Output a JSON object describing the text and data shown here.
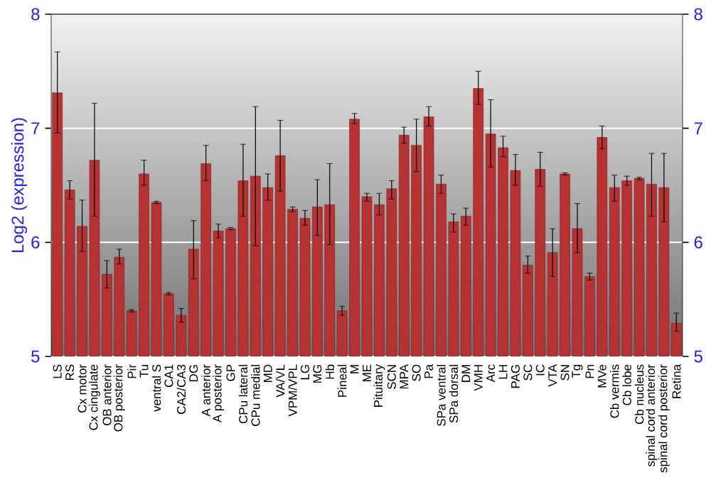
{
  "chart_data": {
    "type": "bar",
    "ylabel": "Log2 (expression)",
    "color": "#b83232",
    "grid": "y",
    "ylim": [
      5,
      8
    ],
    "yticks": [
      5,
      6,
      7,
      8
    ],
    "y2lim": [
      5,
      8
    ],
    "y2ticks": [
      5,
      6,
      7,
      8
    ],
    "categories": [
      "LS",
      "RS",
      "Cx motor",
      "Cx cingulate",
      "OB anterior",
      "OB posterior",
      "Pir",
      "Tu",
      "ventral S",
      "CA1",
      "CA2/CA3",
      "DG",
      "A anterior",
      "A posterior",
      "GP",
      "CPu lateral",
      "CPu medial",
      "MD",
      "VA/VL",
      "VPM/VPL",
      "LG",
      "MG",
      "Hb",
      "Pineal",
      "M",
      "ME",
      "Pituitary",
      "SCN",
      "MPA",
      "SO",
      "Pa",
      "SPa ventral",
      "SPa dorsal",
      "DM",
      "VMH",
      "Arc",
      "LH",
      "PAG",
      "SC",
      "IC",
      "VTA",
      "SN",
      "Tg",
      "Pn",
      "MVe",
      "Cb vermis",
      "Cb lobe",
      "Cb nucleus",
      "spinal cord anterior",
      "spinal cord posterior",
      "Retina"
    ],
    "values": [
      7.31,
      6.46,
      6.14,
      6.72,
      5.72,
      5.87,
      5.4,
      6.6,
      6.35,
      5.55,
      5.36,
      5.94,
      6.69,
      6.1,
      6.12,
      6.54,
      6.58,
      6.48,
      6.76,
      6.29,
      6.21,
      6.31,
      6.33,
      5.4,
      7.08,
      6.4,
      6.33,
      6.47,
      6.94,
      6.85,
      7.1,
      6.51,
      6.18,
      6.23,
      7.35,
      6.95,
      6.83,
      6.63,
      5.8,
      6.64,
      5.91,
      6.6,
      6.12,
      5.7,
      6.92,
      6.48,
      6.54,
      6.56,
      6.51,
      6.48,
      5.29
    ],
    "errors": [
      [
        6.96,
        7.67
      ],
      [
        6.38,
        6.54
      ],
      [
        5.92,
        6.37
      ],
      [
        6.23,
        7.22
      ],
      [
        5.6,
        5.84
      ],
      [
        5.81,
        5.94
      ],
      [
        5.39,
        5.41
      ],
      [
        6.5,
        6.72
      ],
      [
        6.34,
        6.36
      ],
      [
        5.54,
        5.56
      ],
      [
        5.3,
        5.42
      ],
      [
        5.68,
        6.19
      ],
      [
        6.54,
        6.85
      ],
      [
        6.04,
        6.16
      ],
      [
        6.11,
        6.13
      ],
      [
        6.23,
        6.86
      ],
      [
        5.97,
        7.19
      ],
      [
        6.37,
        6.6
      ],
      [
        6.45,
        7.07
      ],
      [
        6.27,
        6.31
      ],
      [
        6.15,
        6.28
      ],
      [
        6.06,
        6.55
      ],
      [
        5.98,
        6.69
      ],
      [
        5.36,
        5.44
      ],
      [
        7.04,
        7.13
      ],
      [
        6.36,
        6.43
      ],
      [
        6.24,
        6.43
      ],
      [
        6.38,
        6.54
      ],
      [
        6.87,
        7.01
      ],
      [
        6.62,
        7.08
      ],
      [
        7.02,
        7.19
      ],
      [
        6.43,
        6.59
      ],
      [
        6.09,
        6.25
      ],
      [
        6.15,
        6.3
      ],
      [
        7.21,
        7.5
      ],
      [
        6.66,
        7.25
      ],
      [
        6.75,
        6.93
      ],
      [
        6.5,
        6.77
      ],
      [
        5.73,
        5.88
      ],
      [
        6.49,
        6.79
      ],
      [
        5.7,
        6.12
      ],
      [
        6.59,
        6.61
      ],
      [
        5.91,
        6.34
      ],
      [
        5.67,
        5.73
      ],
      [
        6.82,
        7.02
      ],
      [
        6.36,
        6.59
      ],
      [
        6.5,
        6.58
      ],
      [
        6.55,
        6.57
      ],
      [
        6.23,
        6.78
      ],
      [
        6.18,
        6.78
      ],
      [
        5.22,
        5.38
      ]
    ]
  }
}
